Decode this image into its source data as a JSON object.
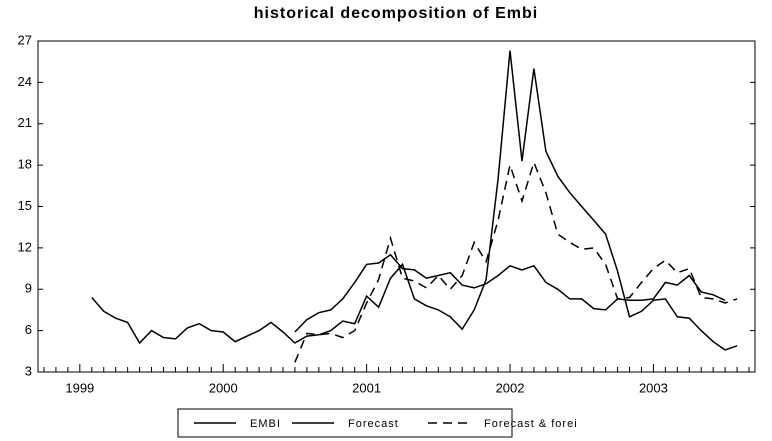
{
  "chart_data": {
    "type": "line",
    "title": "historical decomposition of Embi",
    "categories": [
      null,
      null,
      null,
      "1999",
      null,
      null,
      null,
      null,
      null,
      null,
      null,
      null,
      null,
      null,
      null,
      "2000",
      null,
      null,
      null,
      null,
      null,
      null,
      null,
      null,
      null,
      null,
      null,
      "2001",
      null,
      null,
      null,
      null,
      null,
      null,
      null,
      null,
      null,
      null,
      null,
      "2002",
      null,
      null,
      null,
      null,
      null,
      null,
      null,
      null,
      null,
      null,
      null,
      "2003",
      null,
      null,
      null,
      null,
      null,
      null,
      null,
      null
    ],
    "series": [
      {
        "name": "EMBI",
        "color": "#000000",
        "style": "solid",
        "values": [
          null,
          null,
          null,
          null,
          8.4,
          7.4,
          6.9,
          6.6,
          5.1,
          6.0,
          5.5,
          5.4,
          6.2,
          6.5,
          6.0,
          5.9,
          5.2,
          5.6,
          6.0,
          6.6,
          5.9,
          5.1,
          5.6,
          5.7,
          6.0,
          6.7,
          6.5,
          8.5,
          7.7,
          9.8,
          10.8,
          8.3,
          7.8,
          7.5,
          7.0,
          6.1,
          7.5,
          9.7,
          17.0,
          26.3,
          18.3,
          25.0,
          19.0,
          17.2,
          16.0,
          15.0,
          14.0,
          13.0,
          10.3,
          7.0,
          7.4,
          8.2,
          8.3,
          7.0,
          6.9,
          6.0,
          5.2,
          4.6,
          4.9,
          null
        ]
      },
      {
        "name": "Forecast",
        "color": "#000000",
        "style": "solid",
        "values": [
          null,
          null,
          null,
          null,
          null,
          null,
          null,
          null,
          null,
          null,
          null,
          null,
          null,
          null,
          null,
          null,
          null,
          null,
          null,
          null,
          null,
          5.9,
          6.8,
          7.3,
          7.5,
          8.3,
          9.5,
          10.8,
          10.9,
          11.5,
          10.5,
          10.4,
          9.8,
          10.0,
          10.2,
          9.3,
          9.1,
          9.4,
          10.0,
          10.7,
          10.4,
          10.7,
          9.5,
          9.0,
          8.3,
          8.3,
          7.6,
          7.5,
          8.3,
          8.2,
          8.2,
          8.3,
          9.5,
          9.3,
          10.0,
          8.8,
          8.6,
          8.2,
          null,
          null
        ]
      },
      {
        "name": "Forecast & forei",
        "color": "#000000",
        "style": "dashed",
        "values": [
          null,
          null,
          null,
          null,
          null,
          null,
          null,
          null,
          null,
          null,
          null,
          null,
          null,
          null,
          null,
          null,
          null,
          null,
          null,
          null,
          null,
          3.7,
          5.8,
          5.7,
          5.8,
          5.5,
          6.0,
          8.0,
          9.7,
          12.7,
          9.8,
          9.6,
          9.1,
          10.0,
          9.0,
          10.0,
          12.4,
          11.0,
          14.0,
          18.0,
          15.4,
          18.2,
          16.0,
          13.0,
          12.4,
          11.9,
          12.0,
          10.8,
          8.3,
          8.4,
          9.5,
          10.5,
          11.1,
          10.2,
          10.5,
          8.4,
          8.3,
          8.0,
          8.3,
          null
        ]
      }
    ],
    "ylim": [
      3,
      27
    ],
    "yticks": [
      3,
      6,
      9,
      12,
      15,
      18,
      21,
      24,
      27
    ],
    "legend": "bottom"
  }
}
